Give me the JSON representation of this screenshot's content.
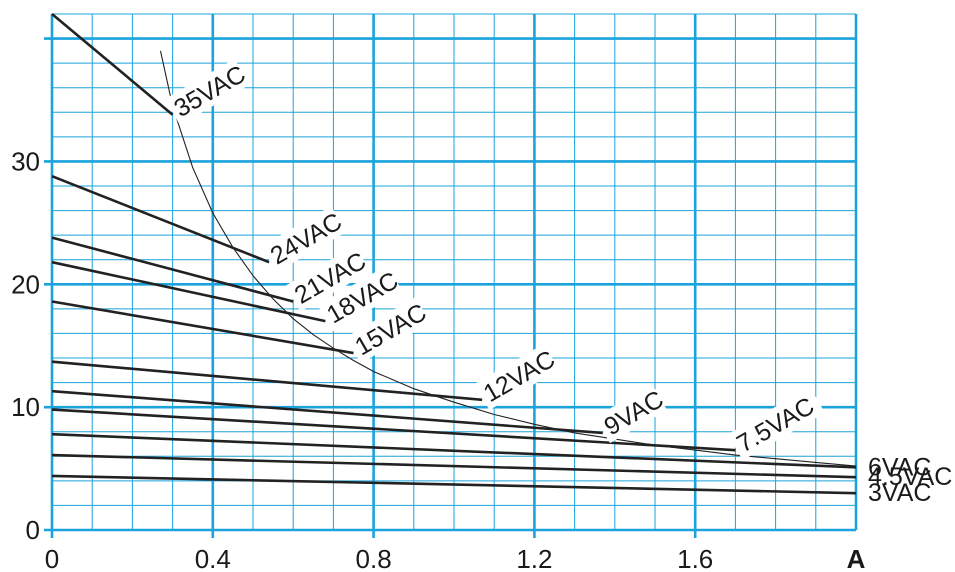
{
  "chart_data": {
    "type": "line",
    "xlabel": "",
    "x_unit_label": "A",
    "ylabel": "",
    "xlim": [
      0,
      2.0
    ],
    "ylim": [
      0,
      42
    ],
    "x_ticks": [
      "0",
      "0.4",
      "0.8",
      "1.2",
      "1.6"
    ],
    "x_tick_values": [
      0,
      0.4,
      0.8,
      1.2,
      1.6
    ],
    "y_ticks": [
      "0",
      "10",
      "20",
      "30"
    ],
    "y_tick_values": [
      0,
      10,
      20,
      30
    ],
    "grid": true,
    "colors": {
      "grid": "#1aa3dc",
      "line": "#222222",
      "curve": "#222222"
    },
    "series": [
      {
        "name": "35VAC",
        "x": [
          0,
          0.3
        ],
        "y": [
          42.0,
          33.8
        ],
        "label_angle": -30
      },
      {
        "name": "24VAC",
        "x": [
          0,
          0.54
        ],
        "y": [
          28.8,
          21.8
        ],
        "label_angle": -30
      },
      {
        "name": "21VAC",
        "x": [
          0,
          0.6
        ],
        "y": [
          23.8,
          18.6
        ],
        "label_angle": -30
      },
      {
        "name": "18VAC",
        "x": [
          0,
          0.68
        ],
        "y": [
          21.8,
          17.0
        ],
        "label_angle": -30
      },
      {
        "name": "15VAC",
        "x": [
          0,
          0.75
        ],
        "y": [
          18.6,
          14.4
        ],
        "label_angle": -30
      },
      {
        "name": "12VAC",
        "x": [
          0,
          1.07
        ],
        "y": [
          13.7,
          10.6
        ],
        "label_angle": -30
      },
      {
        "name": "9VAC",
        "x": [
          0,
          1.37
        ],
        "y": [
          11.3,
          7.9
        ],
        "label_angle": -30
      },
      {
        "name": "7.5VAC",
        "x": [
          0,
          1.7
        ],
        "y": [
          9.8,
          6.5
        ],
        "label_angle": -30
      },
      {
        "name": "6VAC",
        "x": [
          0,
          2.0
        ],
        "y": [
          7.8,
          5.1
        ],
        "label_angle": 0
      },
      {
        "name": "4.5VAC",
        "x": [
          0,
          2.0
        ],
        "y": [
          6.1,
          4.3
        ],
        "label_angle": 0
      },
      {
        "name": "3VAC",
        "x": [
          0,
          2.0
        ],
        "y": [
          4.4,
          3.0
        ],
        "label_angle": 0
      }
    ],
    "power_curve": {
      "x": [
        0.27,
        0.3,
        0.35,
        0.4,
        0.45,
        0.5,
        0.55,
        0.6,
        0.65,
        0.7,
        0.75,
        0.8,
        0.9,
        1.0,
        1.1,
        1.2,
        1.3,
        1.4,
        1.5,
        1.6,
        1.7,
        1.8,
        1.9,
        2.0
      ],
      "y": [
        39.0,
        34.5,
        29.5,
        25.8,
        23.0,
        20.7,
        18.8,
        17.2,
        15.9,
        14.8,
        13.8,
        12.9,
        11.5,
        10.4,
        9.4,
        8.6,
        7.9,
        7.4,
        6.9,
        6.5,
        6.1,
        5.8,
        5.5,
        5.2
      ]
    }
  }
}
